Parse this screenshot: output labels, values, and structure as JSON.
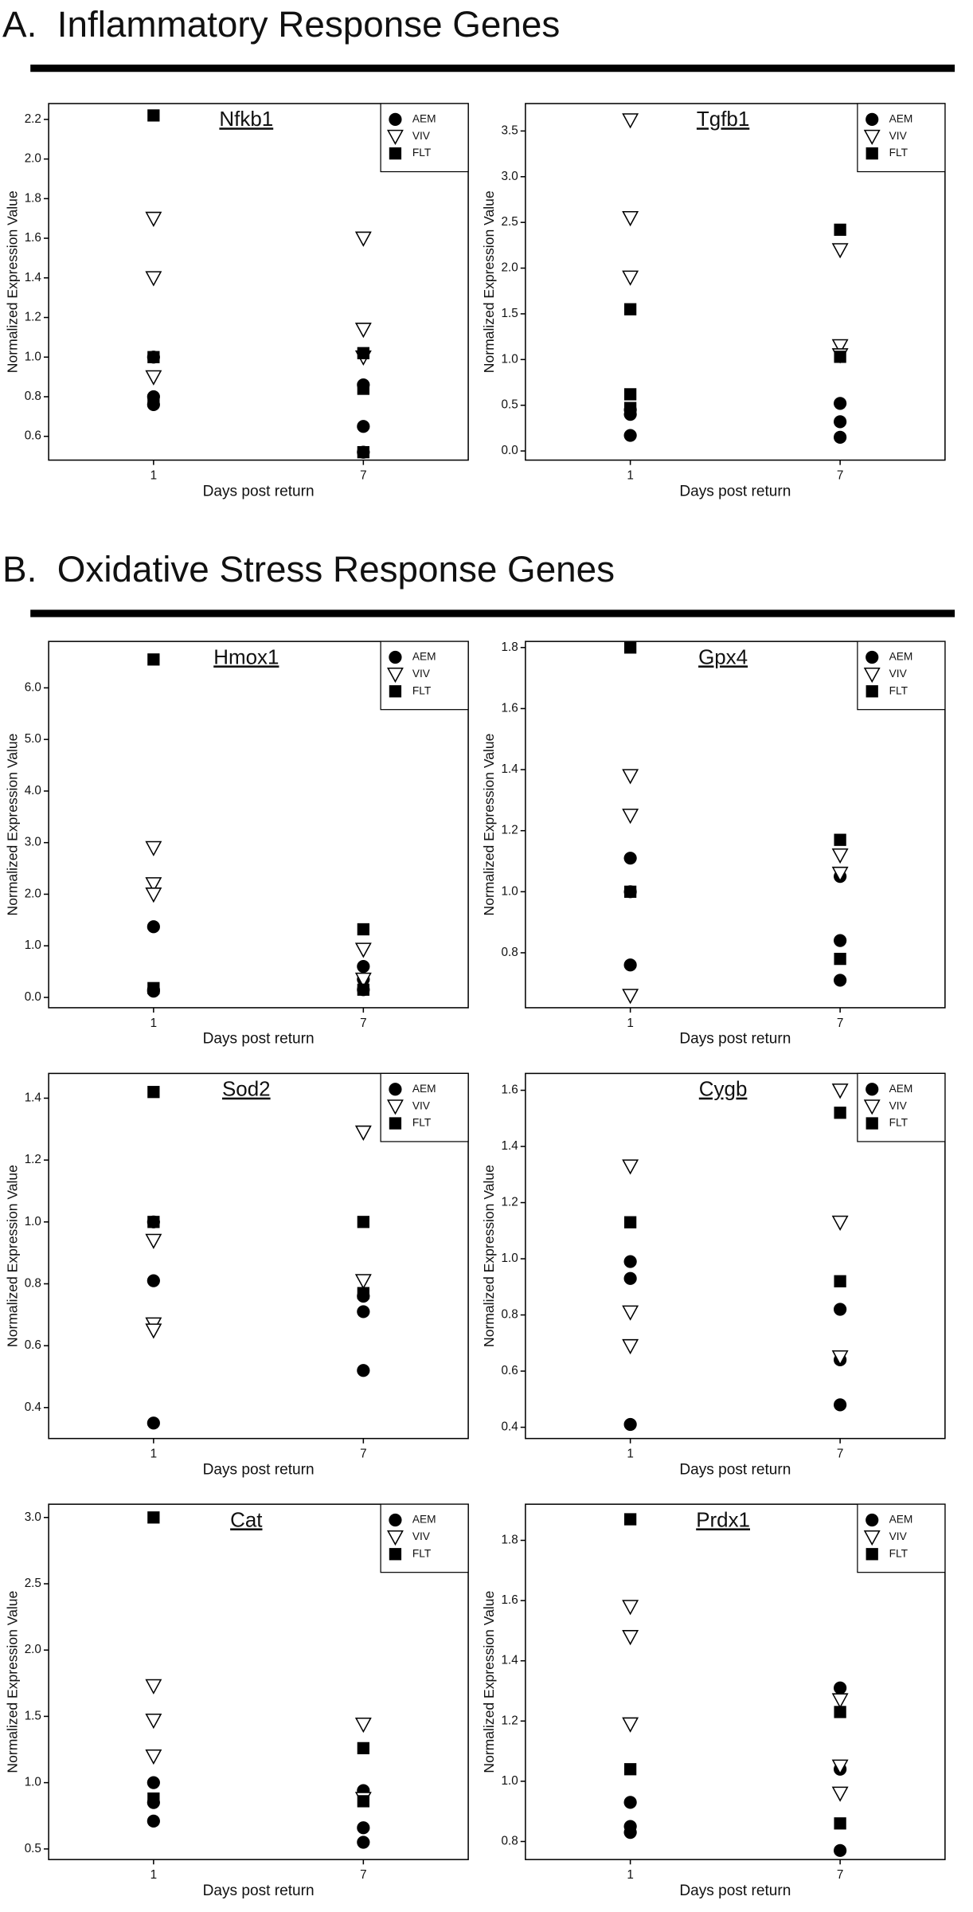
{
  "section_titles": [
    "A.  Inflammatory Response Genes",
    "B.  Oxidative Stress Response Genes"
  ],
  "chart_data": [
    {
      "type": "scatter",
      "title": "Nfkb1",
      "xlabel": "Days post return",
      "ylabel": "Normalized Expression Value",
      "xlim": [
        -2,
        10
      ],
      "xticks": [
        1,
        7
      ],
      "ylim": [
        0.48,
        2.28
      ],
      "yticks": [
        0.6,
        0.8,
        {
          "value": 1,
          "label": "1.0"
        },
        1.2,
        1.4,
        1.6,
        1.8,
        {
          "value": 2,
          "label": "2.0"
        },
        2.2
      ],
      "series": [
        {
          "name": "AEM",
          "marker": "circle",
          "color": "#000000",
          "x": [
            1,
            1,
            1,
            7,
            7,
            7
          ],
          "values": [
            1.0,
            0.8,
            0.76,
            0.86,
            0.65,
            0.52
          ]
        },
        {
          "name": "VIV",
          "marker": "triangle-down",
          "color": "#000000",
          "x": [
            1,
            1,
            1,
            7,
            7,
            7
          ],
          "values": [
            1.7,
            1.4,
            0.9,
            1.6,
            1.14,
            1.0
          ]
        },
        {
          "name": "FLT",
          "marker": "square",
          "color": "#000000",
          "x": [
            1,
            1,
            1,
            7,
            7,
            7
          ],
          "values": [
            2.22,
            1.0,
            0.78,
            1.02,
            0.84,
            0.52
          ]
        }
      ]
    },
    {
      "type": "scatter",
      "title": "Tgfb1",
      "xlabel": "Days post return",
      "ylabel": "Normalized Expression Value",
      "xlim": [
        -2,
        10
      ],
      "xticks": [
        1,
        7
      ],
      "ylim": [
        -0.1,
        3.8
      ],
      "yticks": [
        {
          "value": 0,
          "label": "0.0"
        },
        0.5,
        {
          "value": 1,
          "label": "1.0"
        },
        1.5,
        {
          "value": 2,
          "label": "2.0"
        },
        2.5,
        {
          "value": 3,
          "label": "3.0"
        },
        3.5
      ],
      "series": [
        {
          "name": "AEM",
          "marker": "circle",
          "color": "#000000",
          "x": [
            1,
            1,
            1,
            7,
            7,
            7
          ],
          "values": [
            0.45,
            0.4,
            0.17,
            0.52,
            0.32,
            0.15
          ]
        },
        {
          "name": "VIV",
          "marker": "triangle-down",
          "color": "#000000",
          "x": [
            1,
            1,
            1,
            7,
            7,
            7
          ],
          "values": [
            3.62,
            2.55,
            1.9,
            2.2,
            1.15,
            1.05
          ]
        },
        {
          "name": "FLT",
          "marker": "square",
          "color": "#000000",
          "x": [
            1,
            1,
            1,
            7,
            7
          ],
          "values": [
            1.55,
            0.62,
            0.47,
            2.42,
            1.03
          ]
        }
      ]
    },
    {
      "type": "scatter",
      "title": "Hmox1",
      "xlabel": "Days post return",
      "ylabel": "Normalized Expression Value",
      "xlim": [
        -2,
        10
      ],
      "xticks": [
        1,
        7
      ],
      "ylim": [
        -0.2,
        6.9
      ],
      "yticks": [
        {
          "value": 0,
          "label": "0.0"
        },
        {
          "value": 1,
          "label": "1.0"
        },
        {
          "value": 2,
          "label": "2.0"
        },
        {
          "value": 3,
          "label": "3.0"
        },
        {
          "value": 4,
          "label": "4.0"
        },
        {
          "value": 5,
          "label": "5.0"
        },
        {
          "value": 6,
          "label": "6.0"
        }
      ],
      "series": [
        {
          "name": "AEM",
          "marker": "circle",
          "color": "#000000",
          "x": [
            1,
            1,
            1,
            7,
            7,
            7
          ],
          "values": [
            1.37,
            0.15,
            0.12,
            0.6,
            0.35,
            0.15
          ]
        },
        {
          "name": "VIV",
          "marker": "triangle-down",
          "color": "#000000",
          "x": [
            1,
            1,
            1,
            7,
            7
          ],
          "values": [
            2.9,
            2.2,
            2.0,
            0.93,
            0.35
          ]
        },
        {
          "name": "FLT",
          "marker": "square",
          "color": "#000000",
          "x": [
            1,
            1,
            7,
            7
          ],
          "values": [
            6.55,
            0.18,
            1.32,
            0.15
          ]
        }
      ]
    },
    {
      "type": "scatter",
      "title": "Gpx4",
      "xlabel": "Days post return",
      "ylabel": "Normalized Expression Value",
      "xlim": [
        -2,
        10
      ],
      "xticks": [
        1,
        7
      ],
      "ylim": [
        0.62,
        1.82
      ],
      "yticks": [
        0.8,
        {
          "value": 1,
          "label": "1.0"
        },
        1.2,
        1.4,
        1.6,
        1.8
      ],
      "series": [
        {
          "name": "AEM",
          "marker": "circle",
          "color": "#000000",
          "x": [
            1,
            1,
            1,
            7,
            7,
            7
          ],
          "values": [
            1.11,
            1.0,
            0.76,
            1.05,
            0.84,
            0.71
          ]
        },
        {
          "name": "VIV",
          "marker": "triangle-down",
          "color": "#000000",
          "x": [
            1,
            1,
            1,
            7,
            7
          ],
          "values": [
            1.38,
            1.25,
            0.66,
            1.12,
            1.06
          ]
        },
        {
          "name": "FLT",
          "marker": "square",
          "color": "#000000",
          "x": [
            1,
            1,
            7,
            7
          ],
          "values": [
            1.8,
            1.0,
            1.17,
            0.78
          ]
        }
      ]
    },
    {
      "type": "scatter",
      "title": "Sod2",
      "xlabel": "Days post return",
      "ylabel": "Normalized Expression Value",
      "xlim": [
        -2,
        10
      ],
      "xticks": [
        1,
        7
      ],
      "ylim": [
        0.3,
        1.48
      ],
      "yticks": [
        0.4,
        0.6,
        0.8,
        {
          "value": 1,
          "label": "1.0"
        },
        1.2,
        1.4
      ],
      "series": [
        {
          "name": "AEM",
          "marker": "circle",
          "color": "#000000",
          "x": [
            1,
            1,
            1,
            7,
            7,
            7
          ],
          "values": [
            1.0,
            0.81,
            0.35,
            0.76,
            0.71,
            0.52
          ]
        },
        {
          "name": "VIV",
          "marker": "triangle-down",
          "color": "#000000",
          "x": [
            1,
            1,
            1,
            7,
            7
          ],
          "values": [
            0.94,
            0.67,
            0.65,
            1.29,
            0.81
          ]
        },
        {
          "name": "FLT",
          "marker": "square",
          "color": "#000000",
          "x": [
            1,
            1,
            7,
            7
          ],
          "values": [
            1.42,
            1.0,
            1.0,
            0.77
          ]
        }
      ]
    },
    {
      "type": "scatter",
      "title": "Cygb",
      "xlabel": "Days post return",
      "ylabel": "Normalized Expression Value",
      "xlim": [
        -2,
        10
      ],
      "xticks": [
        1,
        7
      ],
      "ylim": [
        0.36,
        1.66
      ],
      "yticks": [
        0.4,
        0.6,
        0.8,
        {
          "value": 1,
          "label": "1.0"
        },
        1.2,
        1.4,
        1.6
      ],
      "series": [
        {
          "name": "AEM",
          "marker": "circle",
          "color": "#000000",
          "x": [
            1,
            1,
            1,
            7,
            7,
            7
          ],
          "values": [
            0.99,
            0.93,
            0.41,
            0.82,
            0.64,
            0.48
          ]
        },
        {
          "name": "VIV",
          "marker": "triangle-down",
          "color": "#000000",
          "x": [
            1,
            1,
            1,
            7,
            7,
            7
          ],
          "values": [
            1.33,
            0.81,
            0.69,
            1.6,
            1.13,
            0.65
          ]
        },
        {
          "name": "FLT",
          "marker": "square",
          "color": "#000000",
          "x": [
            1,
            7,
            7
          ],
          "values": [
            1.13,
            1.52,
            0.92
          ]
        }
      ]
    },
    {
      "type": "scatter",
      "title": "Cat",
      "xlabel": "Days post return",
      "ylabel": "Normalized Expression Value",
      "xlim": [
        -2,
        10
      ],
      "xticks": [
        1,
        7
      ],
      "ylim": [
        0.42,
        3.1
      ],
      "yticks": [
        0.5,
        {
          "value": 1,
          "label": "1.0"
        },
        1.5,
        {
          "value": 2,
          "label": "2.0"
        },
        2.5,
        {
          "value": 3,
          "label": "3.0"
        }
      ],
      "series": [
        {
          "name": "AEM",
          "marker": "circle",
          "color": "#000000",
          "x": [
            1,
            1,
            1,
            7,
            7,
            7
          ],
          "values": [
            1.0,
            0.85,
            0.71,
            0.94,
            0.66,
            0.55
          ]
        },
        {
          "name": "VIV",
          "marker": "triangle-down",
          "color": "#000000",
          "x": [
            1,
            1,
            1,
            7,
            7
          ],
          "values": [
            1.73,
            1.47,
            1.2,
            1.44,
            0.88
          ]
        },
        {
          "name": "FLT",
          "marker": "square",
          "color": "#000000",
          "x": [
            1,
            1,
            7,
            7
          ],
          "values": [
            3.0,
            0.88,
            1.26,
            0.86
          ]
        }
      ]
    },
    {
      "type": "scatter",
      "title": "Prdx1",
      "xlabel": "Days post return",
      "ylabel": "Normalized Expression Value",
      "xlim": [
        -2,
        10
      ],
      "xticks": [
        1,
        7
      ],
      "ylim": [
        0.74,
        1.92
      ],
      "yticks": [
        0.8,
        {
          "value": 1,
          "label": "1.0"
        },
        1.2,
        1.4,
        1.6,
        1.8
      ],
      "series": [
        {
          "name": "AEM",
          "marker": "circle",
          "color": "#000000",
          "x": [
            1,
            1,
            1,
            7,
            7,
            7
          ],
          "values": [
            0.93,
            0.85,
            0.83,
            1.31,
            1.04,
            0.77
          ]
        },
        {
          "name": "VIV",
          "marker": "triangle-down",
          "color": "#000000",
          "x": [
            1,
            1,
            1,
            7,
            7,
            7
          ],
          "values": [
            1.58,
            1.48,
            1.19,
            1.27,
            1.05,
            0.96
          ]
        },
        {
          "name": "FLT",
          "marker": "square",
          "color": "#000000",
          "x": [
            1,
            1,
            7,
            7
          ],
          "values": [
            1.87,
            1.04,
            1.23,
            0.86
          ]
        }
      ]
    }
  ]
}
